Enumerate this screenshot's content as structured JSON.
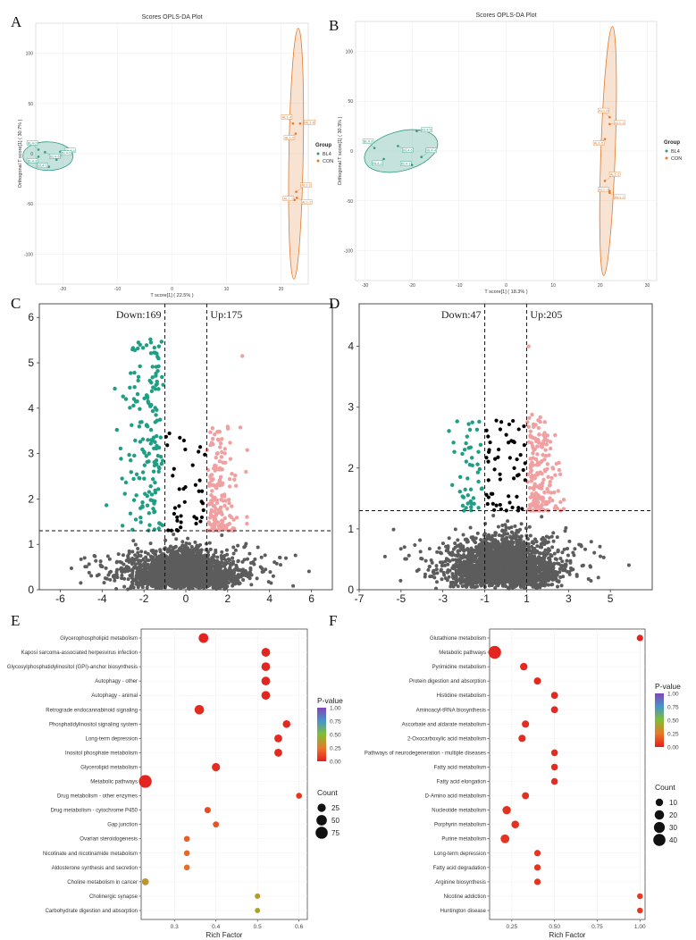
{
  "panels": {
    "A": "A",
    "B": "B",
    "C": "C",
    "D": "D",
    "E": "E",
    "F": "F"
  },
  "colors": {
    "bl": "#2e9c82",
    "con": "#e07b2e",
    "down": "#1f9e84",
    "up": "#f0a0a0",
    "ns": "#5c5c5c",
    "mid": "#000000"
  },
  "chart_data": [
    {
      "panel": "A",
      "type": "scatter",
      "title": "Scores OPLS-DA Plot",
      "xlabel": "T score[1] ( 22.5% )",
      "ylabel": "Orthogonal T score[1] ( 30.7% )",
      "xlim": [
        -25,
        25
      ],
      "ylim": [
        -130,
        130
      ],
      "xticks": [
        -20,
        -10,
        0,
        10,
        20
      ],
      "yticks": [
        -100,
        -50,
        0,
        50,
        100
      ],
      "legend_title": "Group",
      "series": [
        {
          "name": "BL4",
          "points": [
            {
              "x": -24.5,
              "y": 4,
              "label": "BL4-2"
            },
            {
              "x": -20.5,
              "y": 2,
              "label": "BL4-4"
            },
            {
              "x": -24.5,
              "y": -3,
              "label": "BL4-3"
            },
            {
              "x": -21.2,
              "y": -6,
              "label": "BL4-5"
            },
            {
              "x": -22.6,
              "y": -13,
              "label": "BL4-1"
            },
            {
              "x": -23.3,
              "y": 1.5,
              "label": "BL4-6"
            }
          ]
        },
        {
          "name": "CON",
          "points": [
            {
              "x": 22.2,
              "y": 30,
              "label": "AL1-4"
            },
            {
              "x": 23.5,
              "y": 30,
              "label": "AL1-6"
            },
            {
              "x": 22.7,
              "y": 20,
              "label": "AL1-5"
            },
            {
              "x": 22.8,
              "y": -38,
              "label": "AL1-2"
            },
            {
              "x": 22.5,
              "y": -46,
              "label": "AL1-1"
            },
            {
              "x": 22.9,
              "y": -44,
              "label": "AL1-3"
            }
          ]
        }
      ]
    },
    {
      "panel": "B",
      "type": "scatter",
      "title": "Scores OPLS-DA Plot",
      "xlabel": "T score[1] ( 18.3% )",
      "ylabel": "Orthogonal T score[1] ( 30.3% )",
      "xlim": [
        -32,
        32
      ],
      "ylim": [
        -130,
        130
      ],
      "xticks": [
        -30,
        -20,
        -10,
        0,
        10,
        20,
        30
      ],
      "yticks": [
        -100,
        -50,
        0,
        50,
        100
      ],
      "legend_title": "Group",
      "series": [
        {
          "name": "BL4",
          "points": [
            {
              "x": -28,
              "y": 3,
              "label": "BL4-3"
            },
            {
              "x": -19,
              "y": 20,
              "label": "BL4-5"
            },
            {
              "x": -26,
              "y": -8,
              "label": "BL4-2"
            },
            {
              "x": -18,
              "y": -6,
              "label": "BL4-4"
            },
            {
              "x": -20,
              "y": -14,
              "label": "BL4-1"
            },
            {
              "x": -23,
              "y": 5,
              "label": "BL4-6"
            }
          ]
        },
        {
          "name": "CON",
          "points": [
            {
              "x": 22,
              "y": 34,
              "label": "AL1-6"
            },
            {
              "x": 22,
              "y": 27,
              "label": "AL1-4"
            },
            {
              "x": 21,
              "y": 12,
              "label": "AL1-5"
            },
            {
              "x": 21,
              "y": -30,
              "label": "AL1-2"
            },
            {
              "x": 22,
              "y": -40,
              "label": "AL1-3"
            },
            {
              "x": 22,
              "y": -42,
              "label": "AL1-1"
            }
          ]
        }
      ]
    },
    {
      "panel": "C",
      "type": "scatter",
      "title": "",
      "down_label": "Down:169",
      "up_label": "Up:175",
      "xlim": [
        -7,
        7
      ],
      "ylim": [
        0,
        6.3
      ],
      "xticks": [
        -6,
        -4,
        -2,
        0,
        2,
        4,
        6
      ],
      "yticks": [
        0,
        1,
        2,
        3,
        4,
        5,
        6
      ],
      "vlines": [
        -1,
        1
      ],
      "hline": 1.3,
      "down_count": 169,
      "up_count": 175
    },
    {
      "panel": "D",
      "type": "scatter",
      "title": "",
      "down_label": "Down:47",
      "up_label": "Up:205",
      "xlim": [
        -7,
        7
      ],
      "ylim": [
        0,
        4.7
      ],
      "xticks": [
        -7,
        -5,
        -3,
        -1,
        1,
        3,
        5
      ],
      "yticks": [
        0,
        1,
        2,
        3,
        4
      ],
      "vlines": [
        -1,
        1
      ],
      "hline": 1.3,
      "down_count": 47,
      "up_count": 205
    },
    {
      "panel": "E",
      "type": "scatter",
      "xlabel": "Rich Factor",
      "xlim": [
        0.22,
        0.62
      ],
      "xticks": [
        0.3,
        0.4,
        0.5,
        0.6
      ],
      "color_title": "P-value",
      "color_ticks": [
        "1.00",
        "0.75",
        "0.50",
        "0.25",
        "0.00"
      ],
      "size_title": "Count",
      "size_ticks": [
        25,
        50,
        75
      ],
      "terms": [
        {
          "term": "Glycerophospholipid metabolism",
          "rich": 0.37,
          "count": 40,
          "p": 0.01
        },
        {
          "term": "Kaposi sarcoma-associated herpesvirus infection",
          "rich": 0.52,
          "count": 30,
          "p": 0.02
        },
        {
          "term": "Glycosylphosphatidylinositol (GPI)-anchor biosynthesis",
          "rich": 0.52,
          "count": 30,
          "p": 0.02
        },
        {
          "term": "Autophagy - other",
          "rich": 0.52,
          "count": 30,
          "p": 0.02
        },
        {
          "term": "Autophagy - animal",
          "rich": 0.52,
          "count": 30,
          "p": 0.02
        },
        {
          "term": "Retrograde endocannabinoid signaling",
          "rich": 0.36,
          "count": 38,
          "p": 0.03
        },
        {
          "term": "Phosphatidylinositol signaling system",
          "rich": 0.57,
          "count": 20,
          "p": 0.03
        },
        {
          "term": "Long-term depression",
          "rich": 0.55,
          "count": 22,
          "p": 0.03
        },
        {
          "term": "Inositol phosphate metabolism",
          "rich": 0.55,
          "count": 22,
          "p": 0.03
        },
        {
          "term": "Glycerolipid metabolism",
          "rich": 0.4,
          "count": 25,
          "p": 0.04
        },
        {
          "term": "Metabolic pathways",
          "rich": 0.23,
          "count": 85,
          "p": 0.02
        },
        {
          "term": "Drug metabolism - other enzymes",
          "rich": 0.6,
          "count": 8,
          "p": 0.06
        },
        {
          "term": "Drug metabolism - cytochrome P450",
          "rich": 0.38,
          "count": 10,
          "p": 0.12
        },
        {
          "term": "Gap junction",
          "rich": 0.4,
          "count": 9,
          "p": 0.15
        },
        {
          "term": "Ovarian steroidogenesis",
          "rich": 0.33,
          "count": 8,
          "p": 0.18
        },
        {
          "term": "Nicotinate and nicotinamide metabolism",
          "rich": 0.33,
          "count": 8,
          "p": 0.2
        },
        {
          "term": "Aldosterone synthesis and secretion",
          "rich": 0.33,
          "count": 8,
          "p": 0.22
        },
        {
          "term": "Choline metabolism in cancer",
          "rich": 0.23,
          "count": 14,
          "p": 0.35
        },
        {
          "term": "Cholinergic synapse",
          "rich": 0.5,
          "count": 6,
          "p": 0.37
        },
        {
          "term": "Carbohydrate digestion and absorption",
          "rich": 0.5,
          "count": 5,
          "p": 0.4
        }
      ]
    },
    {
      "panel": "F",
      "type": "scatter",
      "xlabel": "Rich Factor",
      "xlim": [
        0.12,
        1.03
      ],
      "xticks": [
        "0.25",
        "0.50",
        "0.75",
        "1.00"
      ],
      "color_title": "P-value",
      "color_ticks": [
        "1.00",
        "0.75",
        "0.50",
        "0.25",
        "0.00"
      ],
      "size_title": "Count",
      "size_ticks": [
        10,
        20,
        30,
        40
      ],
      "terms": [
        {
          "term": "Glutathione metabolism",
          "rich": 1.0,
          "count": 6,
          "p": 0.02
        },
        {
          "term": "Metabolic pathways",
          "rich": 0.15,
          "count": 45,
          "p": 0.02
        },
        {
          "term": "Pyrimidine metabolism",
          "rich": 0.32,
          "count": 10,
          "p": 0.03
        },
        {
          "term": "Protein digestion and absorption",
          "rich": 0.4,
          "count": 9,
          "p": 0.03
        },
        {
          "term": "Histidine metabolism",
          "rich": 0.5,
          "count": 8,
          "p": 0.03
        },
        {
          "term": "Aminoacyl-tRNA biosynthesis",
          "rich": 0.5,
          "count": 8,
          "p": 0.03
        },
        {
          "term": "Ascorbate and aldarate metabolism",
          "rich": 0.33,
          "count": 9,
          "p": 0.04
        },
        {
          "term": "2-Oxocarboxylic acid metabolism",
          "rich": 0.31,
          "count": 9,
          "p": 0.04
        },
        {
          "term": "Pathways of neurodegeneration - multiple diseases",
          "rich": 0.5,
          "count": 7,
          "p": 0.04
        },
        {
          "term": "Fatty acid metabolism",
          "rich": 0.5,
          "count": 7,
          "p": 0.04
        },
        {
          "term": "Fatty acid elongation",
          "rich": 0.5,
          "count": 7,
          "p": 0.04
        },
        {
          "term": "D-Amino acid metabolism",
          "rich": 0.33,
          "count": 8,
          "p": 0.05
        },
        {
          "term": "Nucleotide metabolism",
          "rich": 0.22,
          "count": 14,
          "p": 0.05
        },
        {
          "term": "Porphyrin metabolism",
          "rich": 0.27,
          "count": 11,
          "p": 0.05
        },
        {
          "term": "Purine metabolism",
          "rich": 0.21,
          "count": 16,
          "p": 0.06
        },
        {
          "term": "Long-term depression",
          "rich": 0.4,
          "count": 6,
          "p": 0.06
        },
        {
          "term": "Fatty acid degradation",
          "rich": 0.4,
          "count": 6,
          "p": 0.06
        },
        {
          "term": "Arginine biosynthesis",
          "rich": 0.4,
          "count": 6,
          "p": 0.06
        },
        {
          "term": "Nicotine addiction",
          "rich": 1.0,
          "count": 4,
          "p": 0.07
        },
        {
          "term": "Huntington disease",
          "rich": 1.0,
          "count": 4,
          "p": 0.07
        }
      ]
    }
  ]
}
